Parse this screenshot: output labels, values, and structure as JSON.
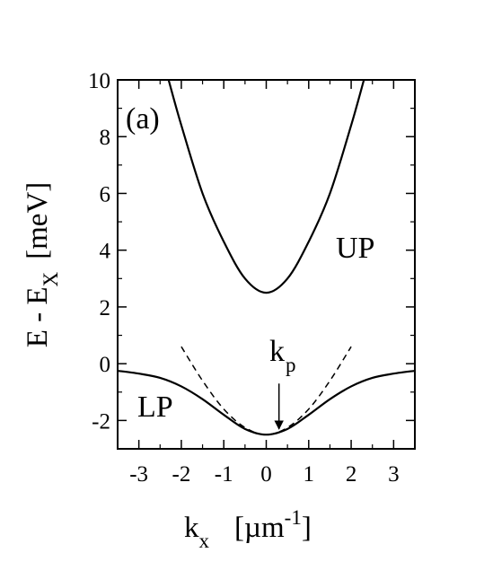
{
  "chart_data": {
    "type": "line",
    "panel_label": "(a)",
    "xlabel": {
      "main": "k",
      "sub": "x",
      "unit_open": "[µm",
      "unit_sup": "-1",
      "unit_close": "]"
    },
    "ylabel": {
      "main": "E - E",
      "sub": "X",
      "unit": "[meV]"
    },
    "xlim": [
      -3.5,
      3.5
    ],
    "ylim": [
      -3,
      10
    ],
    "xticks": [
      -3,
      -2,
      -1,
      0,
      1,
      2,
      3
    ],
    "xtick_labels": [
      "-3",
      "-2",
      "-1",
      "0",
      "1",
      "2",
      "3"
    ],
    "yticks": [
      -2,
      0,
      2,
      4,
      6,
      8,
      10
    ],
    "ytick_labels": [
      "-2",
      "0",
      "2",
      "4",
      "6",
      "8",
      "10"
    ],
    "series": [
      {
        "name": "UP",
        "style": "solid",
        "x": [
          -2.3,
          -2.0,
          -1.5,
          -1.0,
          -0.5,
          0.0,
          0.5,
          1.0,
          1.5,
          2.0,
          2.3
        ],
        "y": [
          10.0,
          8.4,
          6.0,
          4.3,
          3.0,
          2.5,
          3.0,
          4.3,
          6.0,
          8.4,
          10.0
        ]
      },
      {
        "name": "LP",
        "style": "solid",
        "x": [
          -3.5,
          -3.0,
          -2.5,
          -2.0,
          -1.5,
          -1.0,
          -0.5,
          0.0,
          0.5,
          1.0,
          1.5,
          2.0,
          2.5,
          3.0,
          3.5
        ],
        "y": [
          -0.25,
          -0.35,
          -0.5,
          -0.8,
          -1.25,
          -1.8,
          -2.3,
          -2.5,
          -2.3,
          -1.8,
          -1.25,
          -0.8,
          -0.5,
          -0.35,
          -0.25
        ]
      },
      {
        "name": "",
        "style": "dashed",
        "x": [
          -2.0,
          -1.5,
          -1.0,
          -0.5,
          0.0,
          0.5,
          1.0,
          1.5,
          2.0
        ],
        "y": [
          0.6,
          -0.6,
          -1.6,
          -2.25,
          -2.5,
          -2.25,
          -1.6,
          -0.6,
          0.6
        ]
      }
    ],
    "annotations": {
      "up_label": "UP",
      "lp_label": "LP",
      "kp_main": "k",
      "kp_sub": "p",
      "kp_arrow": {
        "x": 0.3,
        "y_from": -0.7,
        "y_to": -2.3
      }
    }
  }
}
